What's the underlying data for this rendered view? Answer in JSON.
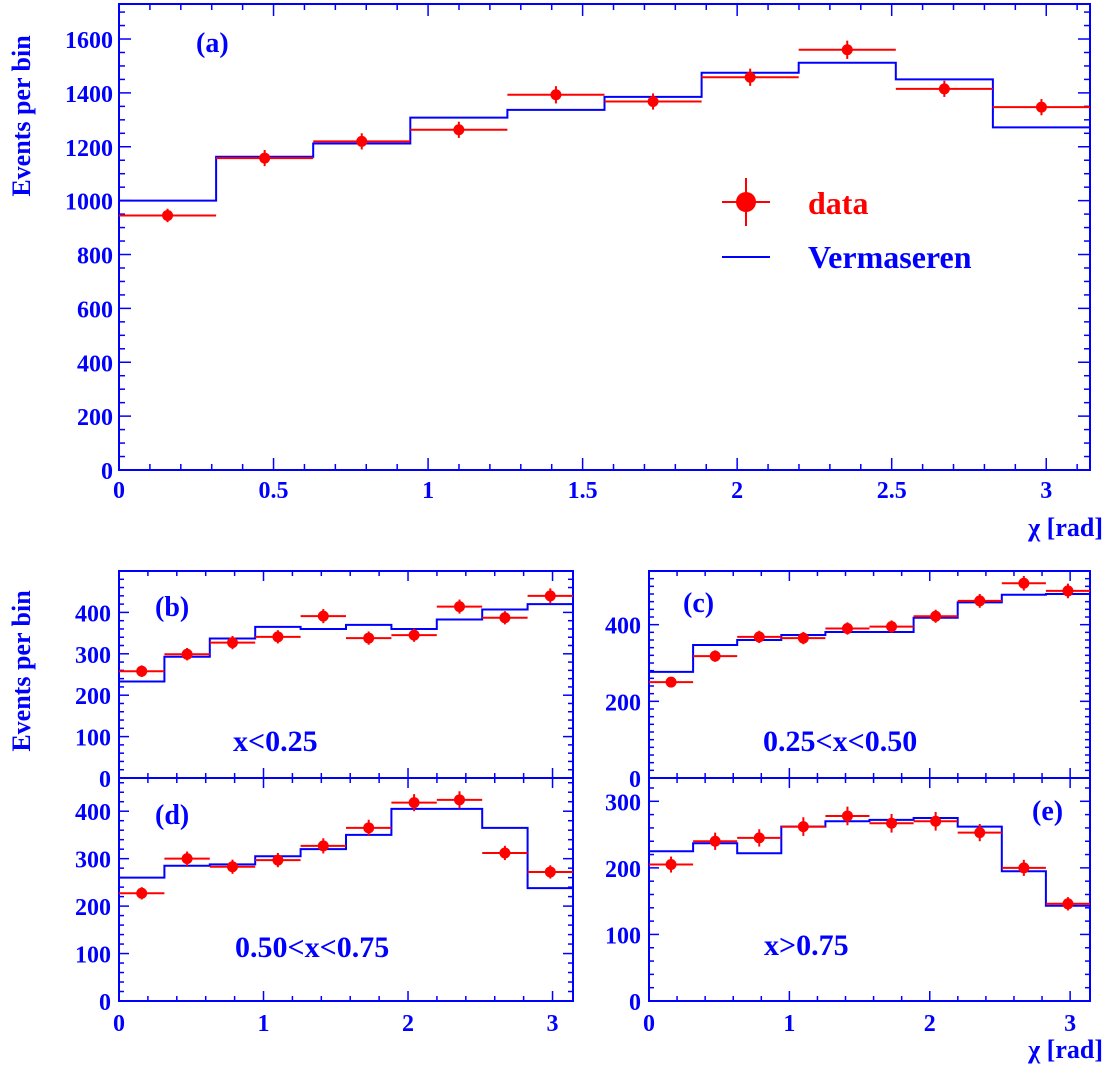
{
  "style": {
    "axis_color": "#0000ff",
    "data_color": "#ff0000",
    "model_color": "#0000ff"
  },
  "legend": {
    "data_label": "data",
    "model_label": "Vermaseren"
  },
  "chart_data": [
    {
      "type": "histogram",
      "panel": "(a)",
      "range_label": "",
      "xlabel": "χ [rad]",
      "ylabel": "Events per bin",
      "xlim": [
        0,
        3.1416
      ],
      "ylim": [
        0,
        1730
      ],
      "xticks": [
        0,
        0.5,
        1,
        1.5,
        2,
        2.5,
        3
      ],
      "xtick_labels": [
        "0",
        "0.5",
        "1",
        "1.5",
        "2",
        "2.5",
        "3"
      ],
      "yticks": [
        0,
        200,
        400,
        600,
        800,
        1000,
        1200,
        1400,
        1600
      ],
      "ytick_labels": [
        "0",
        "200",
        "400",
        "600",
        "800",
        "1000",
        "1200",
        "1400",
        "1600"
      ],
      "yminor_step": 50,
      "xminor_step": 0.1,
      "bin_edges": [
        0,
        0.3142,
        0.6283,
        0.9425,
        1.2566,
        1.5708,
        1.885,
        2.1991,
        2.5133,
        2.8274,
        3.1416
      ],
      "data": [
        945,
        1158,
        1220,
        1263,
        1393,
        1368,
        1458,
        1560,
        1415,
        1347
      ],
      "errors": [
        25,
        30,
        30,
        30,
        32,
        30,
        32,
        34,
        30,
        30
      ],
      "model": [
        1000,
        1163,
        1212,
        1308,
        1337,
        1385,
        1475,
        1512,
        1450,
        1272
      ]
    },
    {
      "type": "histogram",
      "panel": "(b)",
      "range_label": "x<0.25",
      "xlabel": "",
      "ylabel": "Events per bin",
      "xlim": [
        0,
        3.1416
      ],
      "ylim": [
        0,
        500
      ],
      "xticks": [
        0,
        1,
        2,
        3
      ],
      "xtick_labels": [],
      "yticks": [
        0,
        100,
        200,
        300,
        400
      ],
      "ytick_labels": [
        "0",
        "100",
        "200",
        "300",
        "400"
      ],
      "yminor_step": 20,
      "xminor_step": 0.2,
      "bin_edges": [
        0,
        0.3142,
        0.6283,
        0.9425,
        1.2566,
        1.5708,
        1.885,
        2.1991,
        2.5133,
        2.8274,
        3.1416
      ],
      "data": [
        258,
        299,
        327,
        341,
        391,
        338,
        345,
        414,
        387,
        440
      ],
      "errors": [
        14,
        15,
        16,
        16,
        17,
        16,
        16,
        17,
        16,
        18
      ],
      "model": [
        233,
        293,
        337,
        365,
        360,
        370,
        360,
        383,
        407,
        420
      ]
    },
    {
      "type": "histogram",
      "panel": "(c)",
      "range_label": "0.25<x<0.50",
      "xlabel": "",
      "ylabel": "",
      "xlim": [
        0,
        3.1416
      ],
      "ylim": [
        0,
        540
      ],
      "xticks": [
        0,
        1,
        2,
        3
      ],
      "xtick_labels": [],
      "yticks": [
        0,
        200,
        400
      ],
      "ytick_labels": [
        "0",
        "200",
        "400"
      ],
      "yminor_step": 20,
      "xminor_step": 0.2,
      "bin_edges": [
        0,
        0.3142,
        0.6283,
        0.9425,
        1.2566,
        1.5708,
        1.885,
        2.1991,
        2.5133,
        2.8274,
        3.1416
      ],
      "data": [
        250,
        318,
        368,
        365,
        390,
        395,
        422,
        462,
        508,
        488
      ],
      "errors": [
        13,
        15,
        16,
        16,
        16,
        16,
        17,
        18,
        19,
        19
      ],
      "model": [
        277,
        347,
        360,
        373,
        381,
        381,
        418,
        458,
        478,
        480
      ]
    },
    {
      "type": "histogram",
      "panel": "(d)",
      "range_label": "0.50<x<0.75",
      "xlabel": "",
      "ylabel": "",
      "xlim": [
        0,
        3.1416
      ],
      "ylim": [
        0,
        470
      ],
      "xticks": [
        0,
        1,
        2,
        3
      ],
      "xtick_labels": [
        "0",
        "1",
        "2",
        "3"
      ],
      "yticks": [
        0,
        100,
        200,
        300,
        400
      ],
      "ytick_labels": [
        "0",
        "100",
        "200",
        "300",
        "400"
      ],
      "yminor_step": 20,
      "xminor_step": 0.2,
      "bin_edges": [
        0,
        0.3142,
        0.6283,
        0.9425,
        1.2566,
        1.5708,
        1.885,
        2.1991,
        2.5133,
        2.8274,
        3.1416
      ],
      "data": [
        227,
        300,
        283,
        297,
        327,
        365,
        418,
        424,
        312,
        272
      ],
      "errors": [
        13,
        15,
        15,
        15,
        16,
        17,
        18,
        18,
        15,
        14
      ],
      "model": [
        260,
        285,
        288,
        305,
        320,
        350,
        405,
        405,
        365,
        238
      ]
    },
    {
      "type": "histogram",
      "panel": "(e)",
      "range_label": "x>0.75",
      "xlabel": "χ [rad]",
      "ylabel": "",
      "xlim": [
        0,
        3.1416
      ],
      "ylim": [
        0,
        335
      ],
      "xticks": [
        0,
        1,
        2,
        3
      ],
      "xtick_labels": [
        "0",
        "1",
        "2",
        "3"
      ],
      "yticks": [
        0,
        100,
        200,
        300
      ],
      "ytick_labels": [
        "0",
        "100",
        "200",
        "300"
      ],
      "yminor_step": 20,
      "xminor_step": 0.2,
      "bin_edges": [
        0,
        0.3142,
        0.6283,
        0.9425,
        1.2566,
        1.5708,
        1.885,
        2.1991,
        2.5133,
        2.8274,
        3.1416
      ],
      "data": [
        205,
        240,
        245,
        262,
        278,
        267,
        270,
        253,
        200,
        146
      ],
      "errors": [
        12,
        13,
        13,
        14,
        14,
        14,
        14,
        13,
        12,
        10
      ],
      "model": [
        225,
        237,
        222,
        262,
        270,
        272,
        275,
        262,
        195,
        143
      ]
    }
  ]
}
